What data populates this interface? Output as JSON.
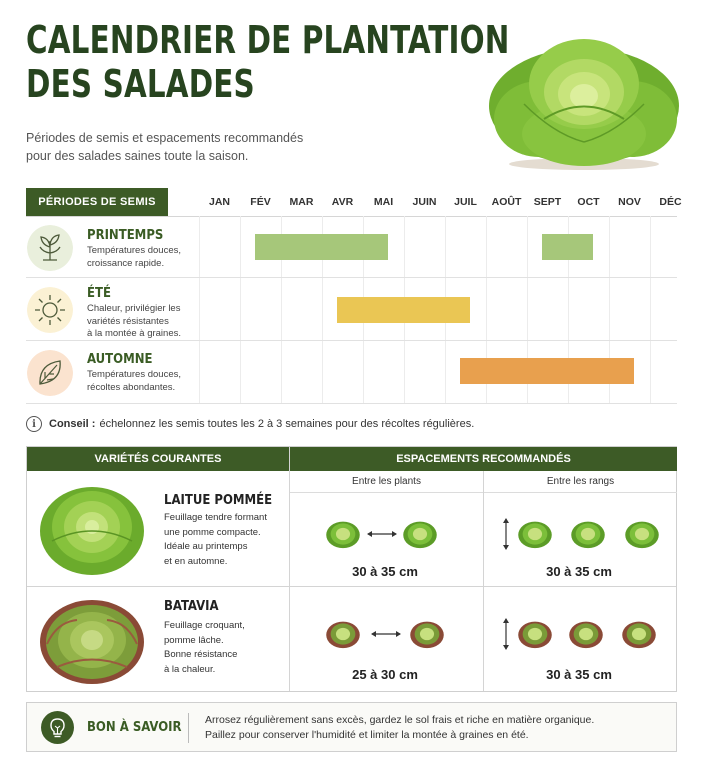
{
  "header": {
    "title_line1": "CALENDRIER DE PLANTATION",
    "title_line2": "DES SALADES",
    "subtitle_line1": "Périodes de semis et espacements recommandés",
    "subtitle_line2": "pour des salades saines toute la saison."
  },
  "calendar": {
    "header_label": "PÉRIODES DE SEMIS",
    "months": [
      "JAN",
      "FÉV",
      "MAR",
      "AVR",
      "MAI",
      "JUIN",
      "JUIL",
      "AOÛT",
      "SEPT",
      "OCT",
      "NOV",
      "DÉC"
    ],
    "seasons": [
      {
        "name": "PRINTEMPS",
        "desc_line1": "Températures douces,",
        "desc_line2": "croissance rapide.",
        "desc_line3": "",
        "icon": "sprout-icon",
        "color": "#a6c77a",
        "periods": [
          {
            "start": "FÉV",
            "end": "MAI"
          },
          {
            "start": "SEPT",
            "end": "OCT"
          }
        ]
      },
      {
        "name": "ÉTÉ",
        "desc_line1": "Chaleur, privilégier les",
        "desc_line2": "variétés résistantes",
        "desc_line3": "à la montée à graines.",
        "icon": "sun-icon",
        "color": "#eac654",
        "periods": [
          {
            "start": "AVR",
            "end": "JUIL"
          }
        ]
      },
      {
        "name": "AUTOMNE",
        "desc_line1": "Températures douces,",
        "desc_line2": "récoltes abondantes.",
        "desc_line3": "",
        "icon": "leaf-icon",
        "color": "#e8a04e",
        "periods": [
          {
            "start": "JUIL",
            "end": "NOV"
          }
        ]
      }
    ]
  },
  "tip": {
    "icon": "info-icon",
    "label": "Conseil :",
    "text": "échelonnez les semis toutes les 2 à 3 semaines pour des récoltes régulières."
  },
  "table": {
    "col_varieties": "VARIÉTÉS COURANTES",
    "col_spacing": "ESPACEMENTS RECOMMANDÉS",
    "sub_between_plants": "Entre les plants",
    "sub_between_rows": "Entre les rangs",
    "rows": [
      {
        "name": "LAITUE POMMÉE",
        "desc": [
          "Feuillage tendre formant",
          "une pomme compacte.",
          "Idéale au printemps",
          "et en automne."
        ],
        "plants_spacing": "30 à 35 cm",
        "rows_spacing": "30 à 35 cm",
        "leaf_color": "#7cbf3a"
      },
      {
        "name": "BATAVIA",
        "desc": [
          "Feuillage croquant,",
          "pomme lâche.",
          "Bonne résistance",
          "à la chaleur."
        ],
        "plants_spacing": "25 à 30 cm",
        "rows_spacing": "30 à 35 cm",
        "leaf_color": "#7a9b38"
      }
    ]
  },
  "good_to_know": {
    "icon": "lightbulb-icon",
    "title": "BON À SAVOIR",
    "line1": "Arrosez régulièrement sans excès, gardez le sol frais et riche en matière organique.",
    "line2": "Paillez pour conserver l'humidité et limiter la montée à graines en été."
  }
}
